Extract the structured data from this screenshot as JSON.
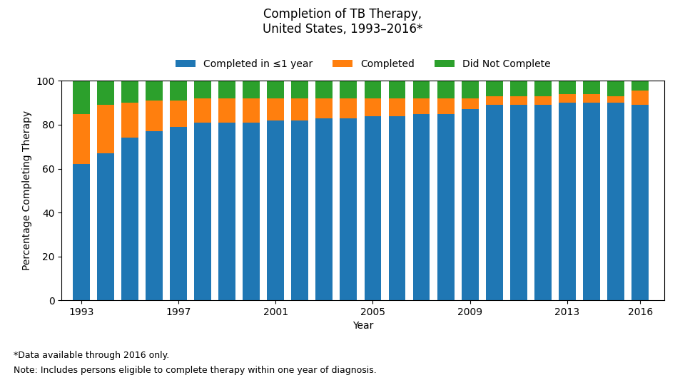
{
  "chart_data": {
    "type": "bar",
    "title": "Completion of TB Therapy,\nUnited States, 1993–2016*",
    "x_label": "Year",
    "y_label": "Percentage Completing Therapy",
    "x": [
      1993,
      1994,
      1995,
      1996,
      1997,
      1998,
      1999,
      2000,
      2001,
      2002,
      2003,
      2004,
      2005,
      2006,
      2007,
      2008,
      2009,
      2010,
      2011,
      2012,
      2013,
      2014,
      2015,
      2016
    ],
    "series": [
      {
        "name": "Completed in ≤1 year",
        "values": [
          62,
          67,
          74,
          77,
          79,
          81,
          81,
          81,
          82,
          82,
          83,
          83,
          84,
          84,
          85,
          85,
          87,
          89,
          89,
          89,
          90,
          90,
          90,
          89.2
        ]
      },
      {
        "name": "Completed",
        "values": [
          23,
          22,
          16,
          14,
          12,
          11,
          11,
          11,
          10,
          10,
          9,
          9,
          8,
          8,
          7,
          7,
          5,
          4,
          4,
          4,
          4,
          4,
          3,
          6.4
        ]
      },
      {
        "name": "Did Not Complete",
        "values": [
          15,
          11,
          10,
          9,
          9,
          8,
          8,
          8,
          8,
          8,
          8,
          8,
          8,
          8,
          8,
          8,
          8,
          7,
          7,
          7,
          6,
          6,
          7,
          4.4
        ]
      }
    ],
    "stacked": true,
    "legend": "upper center",
    "annotations": [
      "*Data available through 2016 only.",
      "Note: Includes persons eligible to complete therapy within one year of diagnosis."
    ],
    "xlim": [
      1992.2,
      2017.0
    ],
    "xticks": [
      1993,
      1997,
      2001,
      2005,
      2009,
      2013,
      2016
    ],
    "ylim": [
      0,
      100
    ],
    "yticks": [
      0,
      20,
      40,
      60,
      80,
      100
    ]
  }
}
